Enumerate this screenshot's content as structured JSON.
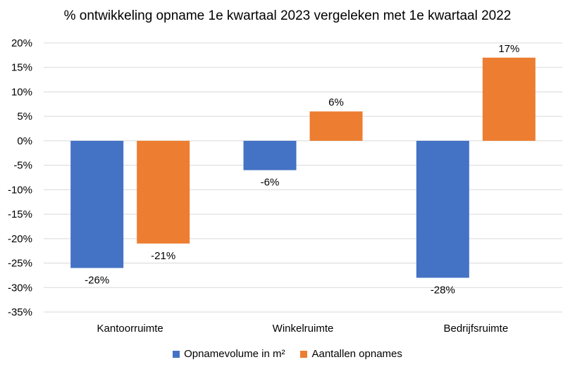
{
  "chart_data": {
    "type": "bar",
    "title": "% ontwikkeling opname 1e kwartaal 2023 vergeleken met 1e kwartaal 2022",
    "categories": [
      "Kantoorruimte",
      "Winkelruimte",
      "Bedrijfsruimte"
    ],
    "series": [
      {
        "name": "Opnamevolume in m²",
        "color": "#4472C4",
        "values": [
          -26,
          -6,
          -28
        ]
      },
      {
        "name": "Aantallen opnames",
        "color": "#ED7D31",
        "values": [
          -21,
          6,
          17
        ]
      }
    ],
    "ylim": [
      -35,
      20
    ],
    "yticks": [
      "20%",
      "15%",
      "10%",
      "5%",
      "0%",
      "-5%",
      "-10%",
      "-15%",
      "-20%",
      "-25%",
      "-30%",
      "-35%"
    ],
    "value_labels": [
      [
        "-26%",
        "-6%",
        "-28%"
      ],
      [
        "-21%",
        "6%",
        "17%"
      ]
    ],
    "grid": true,
    "legend_position": "bottom",
    "xlabel": "",
    "ylabel": ""
  }
}
